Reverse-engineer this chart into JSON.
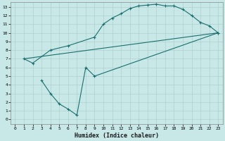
{
  "background_color": "#c8e8e8",
  "grid_color": "#b0d0d0",
  "line_color": "#1a6e6e",
  "xlabel": "Humidex (Indice chaleur)",
  "xlim": [
    -0.5,
    23.5
  ],
  "ylim": [
    -0.5,
    13.5
  ],
  "xticks": [
    0,
    1,
    2,
    3,
    4,
    5,
    6,
    7,
    8,
    9,
    10,
    11,
    12,
    13,
    14,
    15,
    16,
    17,
    18,
    19,
    20,
    21,
    22,
    23
  ],
  "yticks": [
    0,
    1,
    2,
    3,
    4,
    5,
    6,
    7,
    8,
    9,
    10,
    11,
    12,
    13
  ],
  "line1_x": [
    1,
    2,
    4,
    6,
    9,
    10,
    11,
    12,
    13,
    14,
    15,
    16,
    17,
    18,
    19,
    20,
    21,
    22,
    23
  ],
  "line1_y": [
    7,
    6.5,
    8,
    8.5,
    9.5,
    11,
    11.7,
    12.2,
    12.8,
    13.1,
    13.2,
    13.3,
    13.1,
    13.1,
    12.7,
    12,
    11.2,
    10.8,
    10
  ],
  "line2_x": [
    1,
    23
  ],
  "line2_y": [
    7,
    10
  ],
  "line3_x": [
    3,
    4,
    5,
    6,
    7,
    8,
    9,
    23
  ],
  "line3_y": [
    4.5,
    3,
    1.8,
    1.2,
    0.5,
    6,
    5,
    10
  ]
}
